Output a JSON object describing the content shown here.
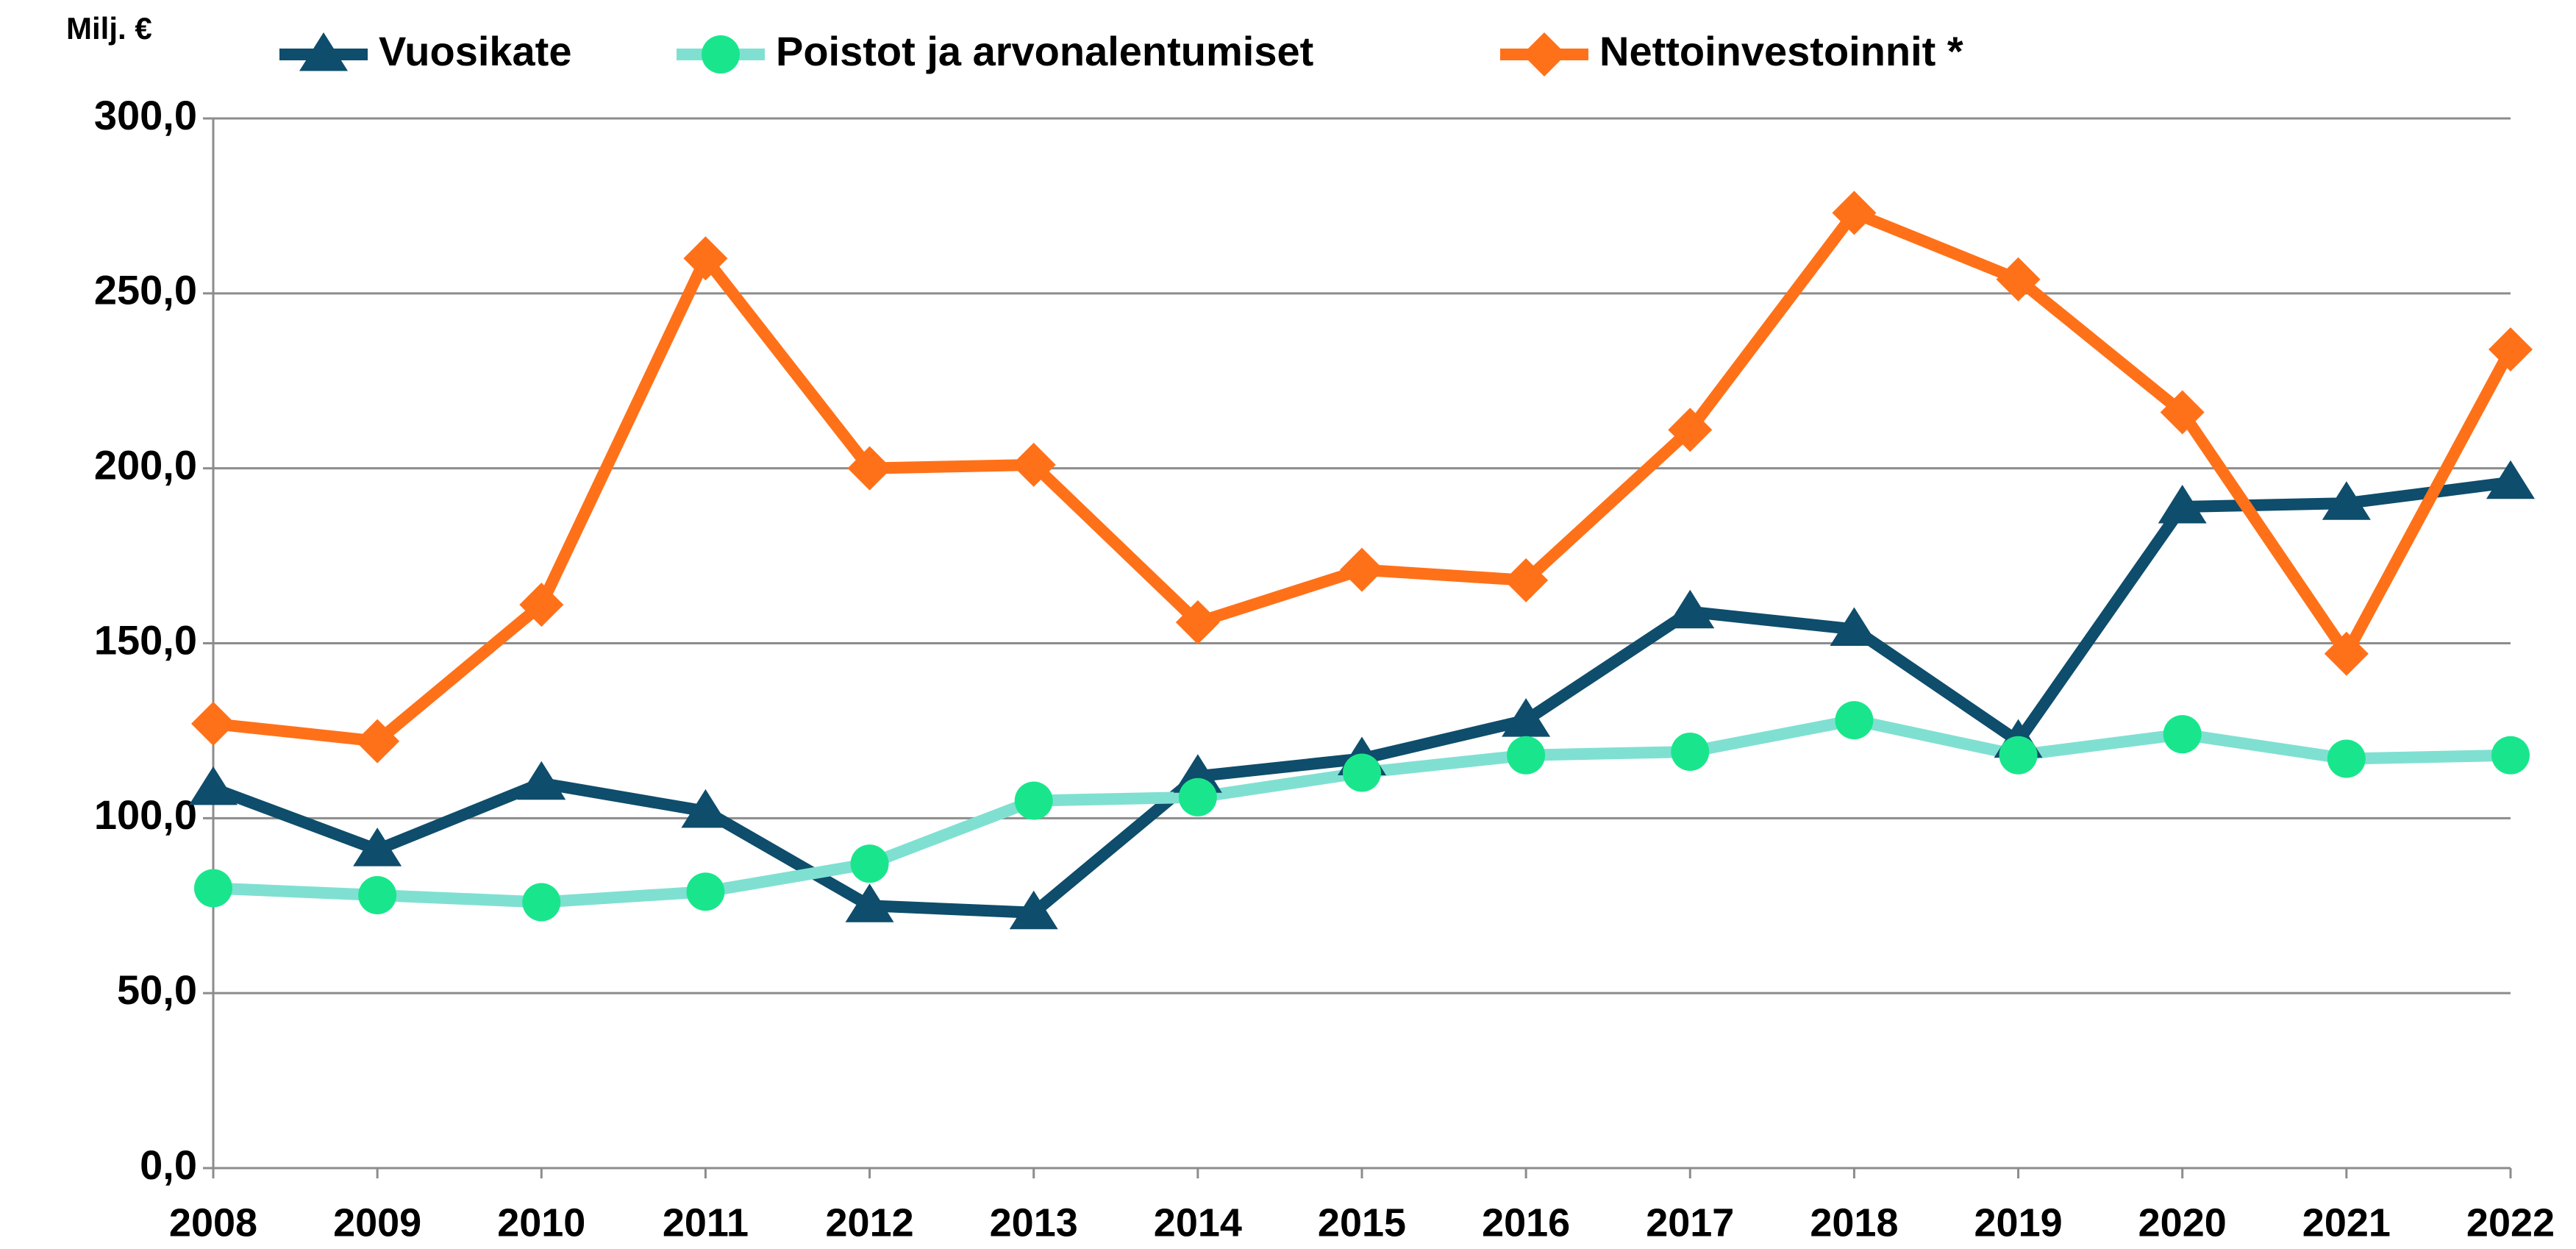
{
  "chart_data": {
    "type": "line",
    "y_unit_label": "Milj. €",
    "categories": [
      "2008",
      "2009",
      "2010",
      "2011",
      "2012",
      "2013",
      "2014",
      "2015",
      "2016",
      "2017",
      "2018",
      "2019",
      "2020",
      "2021",
      "2022"
    ],
    "series": [
      {
        "name": "Vuosikate",
        "color": "#0e4d6b",
        "marker": "triangle",
        "marker_color": "#0e4d6b",
        "values": [
          108.5,
          91,
          110,
          102,
          75,
          73,
          112,
          117,
          128,
          159,
          154,
          122,
          189,
          190,
          196
        ]
      },
      {
        "name": "Poistot ja arvonalentumiset",
        "color": "#7fe0d2",
        "marker": "circle",
        "marker_color": "#19e68c",
        "values": [
          80,
          78,
          76,
          79,
          87,
          105,
          106,
          113,
          118,
          119,
          128,
          118,
          124,
          117,
          118
        ]
      },
      {
        "name": "Nettoinvestoinnit *",
        "color": "#ff7119",
        "marker": "diamond",
        "marker_color": "#ff7119",
        "values": [
          127,
          122,
          161,
          260,
          200,
          201,
          156,
          171,
          168,
          211,
          273,
          254,
          216,
          147,
          234
        ]
      }
    ],
    "ylim": [
      0,
      300
    ],
    "yticks": [
      {
        "value": 0,
        "label": "0,0"
      },
      {
        "value": 50,
        "label": "50,0"
      },
      {
        "value": 100,
        "label": "100,0"
      },
      {
        "value": 150,
        "label": "150,0"
      },
      {
        "value": 200,
        "label": "200,0"
      },
      {
        "value": 250,
        "label": "250,0"
      },
      {
        "value": 300,
        "label": "300,0"
      }
    ],
    "grid": true,
    "legend": "top"
  }
}
